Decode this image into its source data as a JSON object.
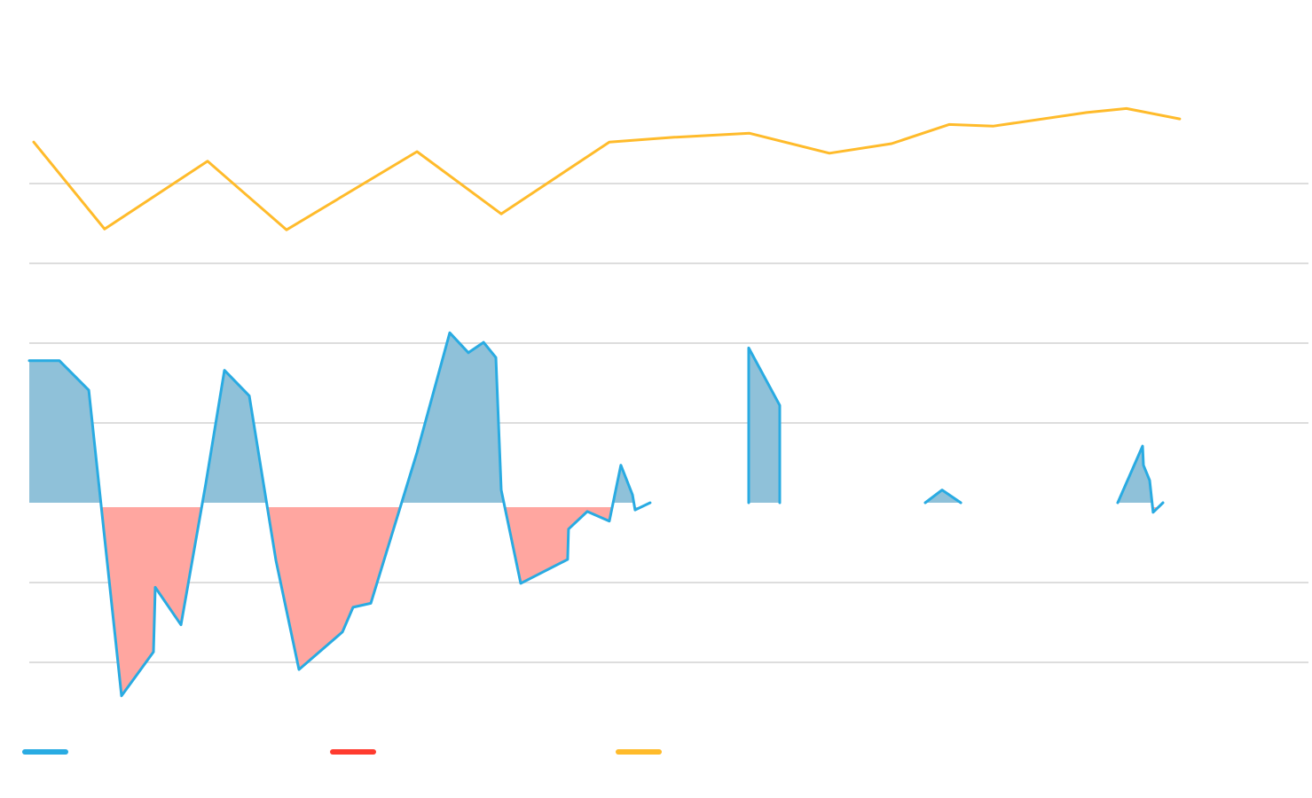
{
  "chart_data": {
    "type": "area",
    "title": "",
    "xlabel": "",
    "ylabel": "",
    "xlim": [
      0,
      100
    ],
    "ylim": [
      -25,
      60
    ],
    "grid": true,
    "gridlines_y": [
      40,
      30,
      20,
      10,
      -10,
      -20
    ],
    "baseline": 0,
    "legend_position": "bottom-left",
    "colors": {
      "blue_line": "#29abe2",
      "positive_fill": "#8fc1d9",
      "negative_fill": "#ffa6a0",
      "red_legend": "#ff3b2f",
      "yellow_line": "#ffbb2b",
      "grid": "#dddddd"
    },
    "series": [
      {
        "color": "#29abe2",
        "segments": [
          [
            [
              0,
              17.8
            ],
            [
              2.36,
              17.8
            ],
            [
              4.65,
              14.1
            ],
            [
              7.21,
              -24.2
            ],
            [
              9.71,
              -18.7
            ],
            [
              9.85,
              -10.6
            ],
            [
              11.86,
              -15.3
            ],
            [
              13.8,
              2.4
            ],
            [
              15.26,
              16.6
            ],
            [
              17.2,
              13.4
            ],
            [
              19.28,
              -7.2
            ],
            [
              21.08,
              -20.9
            ],
            [
              24.48,
              -16.2
            ],
            [
              25.31,
              -13.1
            ],
            [
              26.7,
              -12.6
            ],
            [
              30.31,
              6.3
            ],
            [
              32.87,
              21.3
            ],
            [
              34.33,
              18.8
            ],
            [
              35.51,
              20.1
            ],
            [
              36.48,
              18.2
            ],
            [
              36.89,
              1.6
            ],
            [
              38.42,
              -10.1
            ],
            [
              42.09,
              -7.1
            ],
            [
              42.16,
              -3.3
            ],
            [
              43.62,
              -1.1
            ],
            [
              45.35,
              -2.3
            ],
            [
              46.25,
              4.7
            ],
            [
              47.16,
              1.0
            ],
            [
              47.36,
              -0.9
            ],
            [
              48.54,
              0
            ]
          ],
          [
            [
              56.24,
              0
            ],
            [
              56.24,
              19.4
            ],
            [
              58.67,
              12.2
            ],
            [
              58.67,
              0
            ]
          ],
          [
            [
              70.04,
              0
            ],
            [
              71.36,
              1.6
            ],
            [
              72.82,
              0
            ]
          ],
          [
            [
              85.09,
              0
            ],
            [
              87.03,
              7.1
            ],
            [
              87.1,
              4.7
            ],
            [
              87.59,
              2.8
            ],
            [
              87.86,
              -1.2
            ],
            [
              88.63,
              0
            ]
          ]
        ]
      },
      {
        "color": "#ff3b2f",
        "segments": []
      },
      {
        "color": "#ffbb2b",
        "segments": [
          [
            [
              0.35,
              45.2
            ],
            [
              5.89,
              34.3
            ],
            [
              13.94,
              42.8
            ],
            [
              20.11,
              34.2
            ],
            [
              30.31,
              44.0
            ],
            [
              36.89,
              36.2
            ],
            [
              45.35,
              45.2
            ],
            [
              50.42,
              45.8
            ],
            [
              56.31,
              46.3
            ],
            [
              62.55,
              43.8
            ],
            [
              67.41,
              45.0
            ],
            [
              71.91,
              47.4
            ],
            [
              75.38,
              47.2
            ],
            [
              82.66,
              48.9
            ],
            [
              85.78,
              49.4
            ],
            [
              89.94,
              48.1
            ]
          ]
        ]
      }
    ]
  }
}
